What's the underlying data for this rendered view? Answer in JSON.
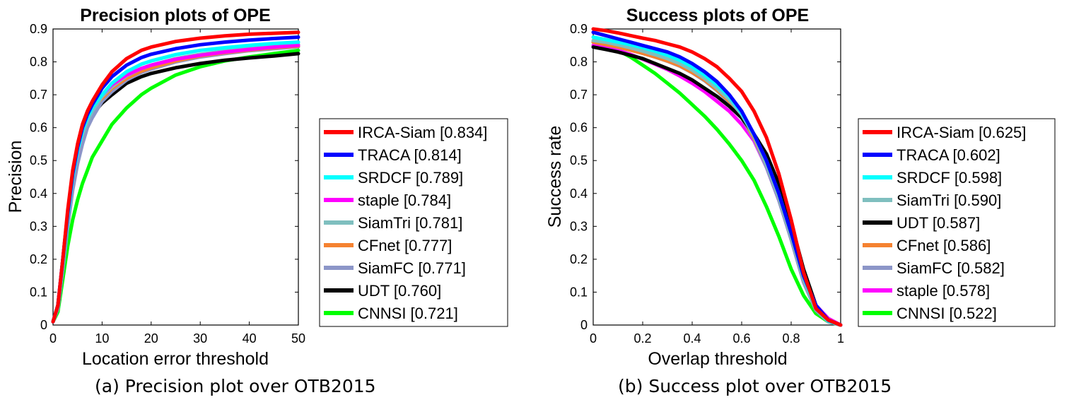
{
  "captions": {
    "left": "(a) Precision plot over OTB2015",
    "right": "(b) Success plot over OTB2015"
  },
  "chart_data": [
    {
      "type": "line",
      "title": "Precision plots of OPE",
      "xlabel": "Location error threshold",
      "ylabel": "Precision",
      "xlim": [
        0,
        50
      ],
      "ylim": [
        0,
        0.9
      ],
      "xticks": [
        0,
        10,
        20,
        30,
        40,
        50
      ],
      "yticks": [
        0,
        0.1,
        0.2,
        0.3,
        0.4,
        0.5,
        0.6,
        0.7,
        0.8,
        0.9
      ],
      "xtick_labels": [
        "0",
        "10",
        "20",
        "30",
        "40",
        "50"
      ],
      "ytick_labels": [
        "0",
        "0.1",
        "0.2",
        "0.3",
        "0.4",
        "0.5",
        "0.6",
        "0.7",
        "0.8",
        "0.9"
      ],
      "grid": false,
      "legend_placement": "outside-right",
      "series": [
        {
          "name": "IRCA-Siam [0.834]",
          "color": "#ff0000",
          "x": [
            0,
            1,
            2,
            3,
            4,
            5,
            6,
            7,
            8,
            10,
            12,
            15,
            18,
            20,
            25,
            30,
            35,
            40,
            45,
            50
          ],
          "y": [
            0.01,
            0.06,
            0.2,
            0.35,
            0.47,
            0.55,
            0.61,
            0.65,
            0.68,
            0.73,
            0.77,
            0.81,
            0.835,
            0.845,
            0.862,
            0.872,
            0.879,
            0.884,
            0.887,
            0.89
          ]
        },
        {
          "name": "TRACA [0.814]",
          "color": "#0000ff",
          "x": [
            0,
            1,
            2,
            3,
            4,
            5,
            6,
            7,
            8,
            10,
            12,
            15,
            18,
            20,
            25,
            30,
            35,
            40,
            45,
            50
          ],
          "y": [
            0.01,
            0.06,
            0.2,
            0.34,
            0.46,
            0.54,
            0.6,
            0.64,
            0.67,
            0.72,
            0.755,
            0.79,
            0.813,
            0.823,
            0.84,
            0.852,
            0.86,
            0.866,
            0.871,
            0.875
          ]
        },
        {
          "name": "SRDCF [0.789]",
          "color": "#00ffff",
          "x": [
            0,
            1,
            2,
            3,
            4,
            5,
            6,
            7,
            8,
            10,
            12,
            15,
            18,
            20,
            25,
            30,
            35,
            40,
            45,
            50
          ],
          "y": [
            0.01,
            0.06,
            0.19,
            0.33,
            0.45,
            0.53,
            0.59,
            0.63,
            0.66,
            0.7,
            0.735,
            0.77,
            0.793,
            0.803,
            0.822,
            0.835,
            0.843,
            0.85,
            0.856,
            0.86
          ]
        },
        {
          "name": "staple [0.784]",
          "color": "#ff00ff",
          "x": [
            0,
            1,
            2,
            3,
            4,
            5,
            6,
            7,
            8,
            10,
            12,
            15,
            18,
            20,
            25,
            30,
            35,
            40,
            45,
            50
          ],
          "y": [
            0.01,
            0.06,
            0.2,
            0.34,
            0.46,
            0.54,
            0.59,
            0.63,
            0.66,
            0.7,
            0.73,
            0.76,
            0.78,
            0.79,
            0.808,
            0.82,
            0.83,
            0.838,
            0.845,
            0.85
          ]
        },
        {
          "name": "SiamTri [0.781]",
          "color": "#7fbfbf",
          "x": [
            0,
            1,
            2,
            3,
            4,
            5,
            6,
            7,
            8,
            10,
            12,
            15,
            18,
            20,
            25,
            30,
            35,
            40,
            45,
            50
          ],
          "y": [
            0.01,
            0.06,
            0.19,
            0.33,
            0.45,
            0.53,
            0.58,
            0.62,
            0.65,
            0.695,
            0.725,
            0.758,
            0.78,
            0.79,
            0.81,
            0.823,
            0.833,
            0.84,
            0.847,
            0.853
          ]
        },
        {
          "name": "CFnet [0.777]",
          "color": "#f58231",
          "x": [
            0,
            1,
            2,
            3,
            4,
            5,
            6,
            7,
            8,
            10,
            12,
            15,
            18,
            20,
            25,
            30,
            35,
            40,
            45,
            50
          ],
          "y": [
            0.01,
            0.06,
            0.2,
            0.34,
            0.46,
            0.54,
            0.59,
            0.63,
            0.66,
            0.69,
            0.72,
            0.75,
            0.772,
            0.782,
            0.803,
            0.818,
            0.828,
            0.836,
            0.843,
            0.848
          ]
        },
        {
          "name": "SiamFC [0.771]",
          "color": "#8c96c8",
          "x": [
            0,
            1,
            2,
            3,
            4,
            5,
            6,
            7,
            8,
            10,
            12,
            15,
            18,
            20,
            25,
            30,
            35,
            40,
            45,
            50
          ],
          "y": [
            0.01,
            0.05,
            0.17,
            0.3,
            0.41,
            0.49,
            0.55,
            0.6,
            0.63,
            0.68,
            0.71,
            0.745,
            0.768,
            0.778,
            0.8,
            0.815,
            0.825,
            0.834,
            0.84,
            0.846
          ]
        },
        {
          "name": "UDT [0.760]",
          "color": "#000000",
          "x": [
            0,
            1,
            2,
            3,
            4,
            5,
            6,
            7,
            8,
            10,
            12,
            15,
            18,
            20,
            25,
            30,
            35,
            40,
            45,
            50
          ],
          "y": [
            0.01,
            0.06,
            0.2,
            0.34,
            0.46,
            0.53,
            0.58,
            0.615,
            0.64,
            0.675,
            0.7,
            0.735,
            0.755,
            0.765,
            0.782,
            0.795,
            0.805,
            0.812,
            0.818,
            0.825
          ]
        },
        {
          "name": "CNNSI [0.721]",
          "color": "#00ff00",
          "x": [
            0,
            1,
            2,
            3,
            4,
            5,
            6,
            7,
            8,
            10,
            12,
            15,
            18,
            20,
            25,
            30,
            35,
            40,
            45,
            50
          ],
          "y": [
            0.01,
            0.04,
            0.14,
            0.24,
            0.32,
            0.38,
            0.43,
            0.47,
            0.51,
            0.56,
            0.61,
            0.66,
            0.7,
            0.72,
            0.76,
            0.785,
            0.803,
            0.815,
            0.825,
            0.835
          ]
        }
      ]
    },
    {
      "type": "line",
      "title": "Success plots of OPE",
      "xlabel": "Overlap threshold",
      "ylabel": "Success rate",
      "xlim": [
        0,
        1
      ],
      "ylim": [
        0,
        0.9
      ],
      "xticks": [
        0,
        0.2,
        0.4,
        0.6,
        0.8,
        1
      ],
      "yticks": [
        0,
        0.1,
        0.2,
        0.3,
        0.4,
        0.5,
        0.6,
        0.7,
        0.8,
        0.9
      ],
      "xtick_labels": [
        "0",
        "0.2",
        "0.4",
        "0.6",
        "0.8",
        "1"
      ],
      "ytick_labels": [
        "0",
        "0.1",
        "0.2",
        "0.3",
        "0.4",
        "0.5",
        "0.6",
        "0.7",
        "0.8",
        "0.9"
      ],
      "grid": false,
      "legend_placement": "outside-right",
      "series": [
        {
          "name": "IRCA-Siam [0.625]",
          "color": "#ff0000",
          "x": [
            0,
            0.05,
            0.1,
            0.15,
            0.2,
            0.25,
            0.3,
            0.35,
            0.4,
            0.45,
            0.5,
            0.55,
            0.6,
            0.65,
            0.7,
            0.75,
            0.8,
            0.85,
            0.9,
            0.95,
            1
          ],
          "y": [
            0.9,
            0.895,
            0.888,
            0.88,
            0.872,
            0.865,
            0.855,
            0.845,
            0.83,
            0.81,
            0.785,
            0.75,
            0.71,
            0.65,
            0.57,
            0.46,
            0.32,
            0.16,
            0.05,
            0.015,
            0
          ]
        },
        {
          "name": "TRACA [0.602]",
          "color": "#0000ff",
          "x": [
            0,
            0.05,
            0.1,
            0.15,
            0.2,
            0.25,
            0.3,
            0.35,
            0.4,
            0.45,
            0.5,
            0.55,
            0.6,
            0.65,
            0.7,
            0.75,
            0.8,
            0.85,
            0.9,
            0.95,
            1
          ],
          "y": [
            0.89,
            0.88,
            0.87,
            0.86,
            0.85,
            0.84,
            0.83,
            0.815,
            0.795,
            0.77,
            0.74,
            0.7,
            0.65,
            0.58,
            0.5,
            0.4,
            0.28,
            0.15,
            0.06,
            0.015,
            0
          ]
        },
        {
          "name": "SRDCF [0.598]",
          "color": "#00ffff",
          "x": [
            0,
            0.05,
            0.1,
            0.15,
            0.2,
            0.25,
            0.3,
            0.35,
            0.4,
            0.45,
            0.5,
            0.55,
            0.6,
            0.65,
            0.7,
            0.75,
            0.8,
            0.85,
            0.9,
            0.95,
            1
          ],
          "y": [
            0.875,
            0.868,
            0.86,
            0.852,
            0.843,
            0.833,
            0.82,
            0.805,
            0.785,
            0.76,
            0.73,
            0.695,
            0.645,
            0.58,
            0.5,
            0.4,
            0.28,
            0.15,
            0.05,
            0.012,
            0
          ]
        },
        {
          "name": "SiamTri [0.590]",
          "color": "#7fbfbf",
          "x": [
            0,
            0.05,
            0.1,
            0.15,
            0.2,
            0.25,
            0.3,
            0.35,
            0.4,
            0.45,
            0.5,
            0.55,
            0.6,
            0.65,
            0.7,
            0.75,
            0.8,
            0.85,
            0.9,
            0.95,
            1
          ],
          "y": [
            0.865,
            0.86,
            0.852,
            0.843,
            0.833,
            0.822,
            0.81,
            0.795,
            0.775,
            0.75,
            0.72,
            0.685,
            0.64,
            0.575,
            0.49,
            0.39,
            0.27,
            0.14,
            0.05,
            0.012,
            0
          ]
        },
        {
          "name": "UDT [0.587]",
          "color": "#000000",
          "x": [
            0,
            0.05,
            0.1,
            0.15,
            0.2,
            0.25,
            0.3,
            0.35,
            0.4,
            0.45,
            0.5,
            0.55,
            0.6,
            0.65,
            0.7,
            0.75,
            0.8,
            0.85,
            0.9,
            0.95,
            1
          ],
          "y": [
            0.845,
            0.838,
            0.83,
            0.82,
            0.81,
            0.795,
            0.78,
            0.765,
            0.745,
            0.72,
            0.695,
            0.665,
            0.63,
            0.58,
            0.52,
            0.43,
            0.31,
            0.17,
            0.06,
            0.015,
            0
          ]
        },
        {
          "name": "CFnet [0.586]",
          "color": "#f58231",
          "x": [
            0,
            0.05,
            0.1,
            0.15,
            0.2,
            0.25,
            0.3,
            0.35,
            0.4,
            0.45,
            0.5,
            0.55,
            0.6,
            0.65,
            0.7,
            0.75,
            0.8,
            0.85,
            0.9,
            0.95,
            1
          ],
          "y": [
            0.86,
            0.853,
            0.845,
            0.836,
            0.826,
            0.815,
            0.803,
            0.788,
            0.768,
            0.745,
            0.715,
            0.68,
            0.635,
            0.57,
            0.49,
            0.39,
            0.27,
            0.14,
            0.05,
            0.012,
            0
          ]
        },
        {
          "name": "SiamFC [0.582]",
          "color": "#8c96c8",
          "x": [
            0,
            0.05,
            0.1,
            0.15,
            0.2,
            0.25,
            0.3,
            0.35,
            0.4,
            0.45,
            0.5,
            0.55,
            0.6,
            0.65,
            0.7,
            0.75,
            0.8,
            0.85,
            0.9,
            0.95,
            1
          ],
          "y": [
            0.86,
            0.853,
            0.845,
            0.836,
            0.826,
            0.815,
            0.802,
            0.787,
            0.767,
            0.743,
            0.713,
            0.677,
            0.63,
            0.565,
            0.48,
            0.38,
            0.26,
            0.13,
            0.045,
            0.01,
            0
          ]
        },
        {
          "name": "staple [0.578]",
          "color": "#ff00ff",
          "x": [
            0,
            0.05,
            0.1,
            0.15,
            0.2,
            0.25,
            0.3,
            0.35,
            0.4,
            0.45,
            0.5,
            0.55,
            0.6,
            0.65,
            0.7,
            0.75,
            0.8,
            0.85,
            0.9,
            0.95,
            1
          ],
          "y": [
            0.85,
            0.843,
            0.835,
            0.823,
            0.808,
            0.793,
            0.777,
            0.757,
            0.735,
            0.71,
            0.68,
            0.65,
            0.61,
            0.56,
            0.48,
            0.38,
            0.27,
            0.15,
            0.06,
            0.02,
            0
          ]
        },
        {
          "name": "CNNSI [0.522]",
          "color": "#00ff00",
          "x": [
            0,
            0.05,
            0.1,
            0.15,
            0.2,
            0.25,
            0.3,
            0.35,
            0.4,
            0.45,
            0.5,
            0.55,
            0.6,
            0.65,
            0.7,
            0.75,
            0.8,
            0.85,
            0.9,
            0.95,
            1
          ],
          "y": [
            0.86,
            0.85,
            0.835,
            0.815,
            0.79,
            0.765,
            0.735,
            0.705,
            0.67,
            0.635,
            0.595,
            0.55,
            0.5,
            0.44,
            0.36,
            0.27,
            0.17,
            0.09,
            0.035,
            0.01,
            0
          ]
        }
      ]
    }
  ]
}
